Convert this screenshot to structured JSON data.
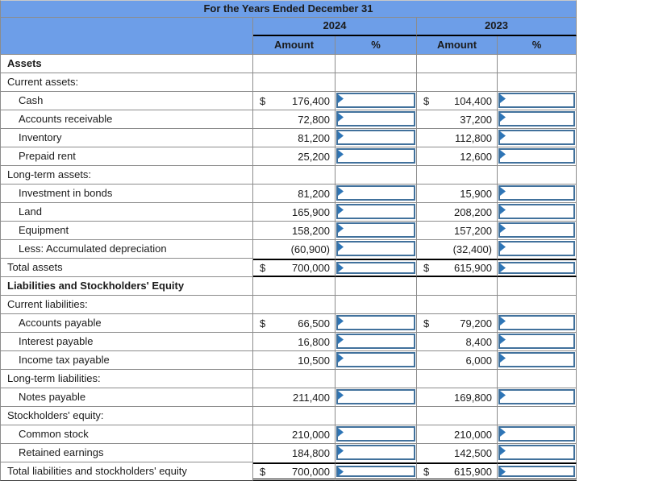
{
  "title": "For the Years Ended December 31",
  "header": {
    "year_left": "2024",
    "year_right": "2023",
    "amount": "Amount",
    "percent": "%"
  },
  "colors": {
    "header_bg": "#6D9EE8",
    "grid_line": "#8C8C8C",
    "input_border": "#41719C",
    "flag": "#2E75B6"
  },
  "rows": [
    {
      "label": "Assets",
      "bold": true,
      "indent": false,
      "d24": "",
      "a24": "",
      "d23": "",
      "a23": "",
      "input": false,
      "total": false,
      "grand": false
    },
    {
      "label": "Current assets:",
      "bold": false,
      "indent": false,
      "d24": "",
      "a24": "",
      "d23": "",
      "a23": "",
      "input": false,
      "total": false,
      "grand": false
    },
    {
      "label": "Cash",
      "bold": false,
      "indent": true,
      "d24": "$",
      "a24": "176,400",
      "d23": "$",
      "a23": "104,400",
      "input": true,
      "total": false,
      "grand": false
    },
    {
      "label": "Accounts receivable",
      "bold": false,
      "indent": true,
      "d24": "",
      "a24": "72,800",
      "d23": "",
      "a23": "37,200",
      "input": true,
      "total": false,
      "grand": false
    },
    {
      "label": "Inventory",
      "bold": false,
      "indent": true,
      "d24": "",
      "a24": "81,200",
      "d23": "",
      "a23": "112,800",
      "input": true,
      "total": false,
      "grand": false
    },
    {
      "label": "Prepaid rent",
      "bold": false,
      "indent": true,
      "d24": "",
      "a24": "25,200",
      "d23": "",
      "a23": "12,600",
      "input": true,
      "total": false,
      "grand": false
    },
    {
      "label": "Long-term assets:",
      "bold": false,
      "indent": false,
      "d24": "",
      "a24": "",
      "d23": "",
      "a23": "",
      "input": false,
      "total": false,
      "grand": false
    },
    {
      "label": "Investment in bonds",
      "bold": false,
      "indent": true,
      "d24": "",
      "a24": "81,200",
      "d23": "",
      "a23": "15,900",
      "input": true,
      "total": false,
      "grand": false
    },
    {
      "label": "Land",
      "bold": false,
      "indent": true,
      "d24": "",
      "a24": "165,900",
      "d23": "",
      "a23": "208,200",
      "input": true,
      "total": false,
      "grand": false
    },
    {
      "label": "Equipment",
      "bold": false,
      "indent": true,
      "d24": "",
      "a24": "158,200",
      "d23": "",
      "a23": "157,200",
      "input": true,
      "total": false,
      "grand": false
    },
    {
      "label": "Less: Accumulated depreciation",
      "bold": false,
      "indent": true,
      "d24": "",
      "a24": "(60,900)",
      "d23": "",
      "a23": "(32,400)",
      "input": true,
      "total": false,
      "grand": false
    },
    {
      "label": "Total assets",
      "bold": false,
      "indent": false,
      "d24": "$",
      "a24": "700,000",
      "d23": "$",
      "a23": "615,900",
      "input": true,
      "total": true,
      "grand": false
    },
    {
      "label": "Liabilities and Stockholders' Equity",
      "bold": true,
      "indent": false,
      "d24": "",
      "a24": "",
      "d23": "",
      "a23": "",
      "input": false,
      "total": false,
      "grand": false
    },
    {
      "label": "Current liabilities:",
      "bold": false,
      "indent": false,
      "d24": "",
      "a24": "",
      "d23": "",
      "a23": "",
      "input": false,
      "total": false,
      "grand": false
    },
    {
      "label": "Accounts payable",
      "bold": false,
      "indent": true,
      "d24": "$",
      "a24": "66,500",
      "d23": "$",
      "a23": "79,200",
      "input": true,
      "total": false,
      "grand": false
    },
    {
      "label": "Interest payable",
      "bold": false,
      "indent": true,
      "d24": "",
      "a24": "16,800",
      "d23": "",
      "a23": "8,400",
      "input": true,
      "total": false,
      "grand": false
    },
    {
      "label": "Income tax payable",
      "bold": false,
      "indent": true,
      "d24": "",
      "a24": "10,500",
      "d23": "",
      "a23": "6,000",
      "input": true,
      "total": false,
      "grand": false
    },
    {
      "label": "Long-term liabilities:",
      "bold": false,
      "indent": false,
      "d24": "",
      "a24": "",
      "d23": "",
      "a23": "",
      "input": false,
      "total": false,
      "grand": false
    },
    {
      "label": "Notes payable",
      "bold": false,
      "indent": true,
      "d24": "",
      "a24": "211,400",
      "d23": "",
      "a23": "169,800",
      "input": true,
      "total": false,
      "grand": false
    },
    {
      "label": "Stockholders' equity:",
      "bold": false,
      "indent": false,
      "d24": "",
      "a24": "",
      "d23": "",
      "a23": "",
      "input": false,
      "total": false,
      "grand": false
    },
    {
      "label": "Common stock",
      "bold": false,
      "indent": true,
      "d24": "",
      "a24": "210,000",
      "d23": "",
      "a23": "210,000",
      "input": true,
      "total": false,
      "grand": false
    },
    {
      "label": "Retained earnings",
      "bold": false,
      "indent": true,
      "d24": "",
      "a24": "184,800",
      "d23": "",
      "a23": "142,500",
      "input": true,
      "total": false,
      "grand": false
    },
    {
      "label": "Total liabilities and stockholders' equity",
      "bold": false,
      "indent": false,
      "d24": "$",
      "a24": "700,000",
      "d23": "$",
      "a23": "615,900",
      "input": true,
      "total": true,
      "grand": true
    }
  ]
}
